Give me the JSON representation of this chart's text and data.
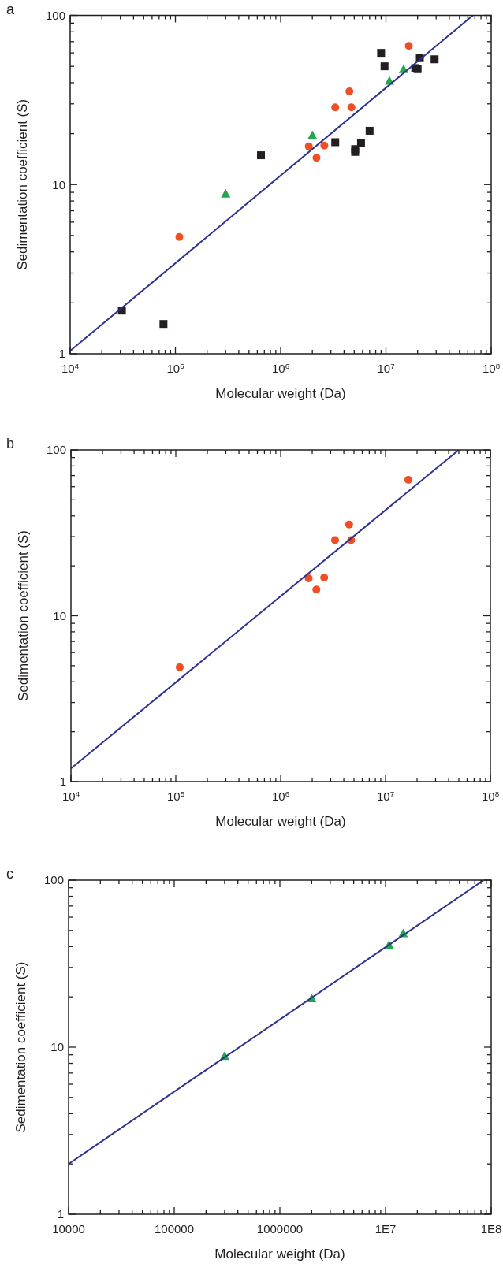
{
  "chart_data": [
    {
      "type": "scatter",
      "annotations": [
        "a"
      ],
      "xlabel": "Molecular weight (Da)",
      "ylabel": "Sedimentation coefficient (S)",
      "log": "xy",
      "grid": false,
      "xlim": [
        10000,
        100000000
      ],
      "ylim": [
        1,
        100
      ],
      "xticks": [
        {
          "value": 10000,
          "label": "10$^{4}$"
        },
        {
          "value": 20000,
          "label": null
        },
        {
          "value": 30000,
          "label": null
        },
        {
          "value": 40000,
          "label": null
        },
        {
          "value": 50000,
          "label": null
        },
        {
          "value": 60000,
          "label": null
        },
        {
          "value": 70000,
          "label": null
        },
        {
          "value": 80000,
          "label": null
        },
        {
          "value": 90000,
          "label": null
        },
        {
          "value": 100000,
          "label": "10$^{5}$"
        },
        {
          "value": 200000,
          "label": null
        },
        {
          "value": 300000,
          "label": null
        },
        {
          "value": 400000,
          "label": null
        },
        {
          "value": 500000,
          "label": null
        },
        {
          "value": 600000,
          "label": null
        },
        {
          "value": 700000,
          "label": null
        },
        {
          "value": 800000,
          "label": null
        },
        {
          "value": 900000,
          "label": null
        },
        {
          "value": 1000000,
          "label": "10$^{6}$"
        },
        {
          "value": 2000000,
          "label": null
        },
        {
          "value": 3000000,
          "label": null
        },
        {
          "value": 4000000,
          "label": null
        },
        {
          "value": 5000000,
          "label": null
        },
        {
          "value": 6000000,
          "label": null
        },
        {
          "value": 7000000,
          "label": null
        },
        {
          "value": 8000000,
          "label": null
        },
        {
          "value": 9000000,
          "label": null
        },
        {
          "value": 10000000,
          "label": "10$^{7}$"
        },
        {
          "value": 20000000,
          "label": null
        },
        {
          "value": 30000000,
          "label": null
        },
        {
          "value": 40000000,
          "label": null
        },
        {
          "value": 50000000,
          "label": null
        },
        {
          "value": 60000000,
          "label": null
        },
        {
          "value": 70000000,
          "label": null
        },
        {
          "value": 80000000,
          "label": null
        },
        {
          "value": 90000000,
          "label": null
        },
        {
          "value": 100000000,
          "label": "10$^{8}$"
        }
      ],
      "yticks": [
        1,
        {
          "value": 2,
          "label": null
        },
        {
          "value": 3,
          "label": null
        },
        {
          "value": 4,
          "label": null
        },
        {
          "value": 5,
          "label": null
        },
        {
          "value": 6,
          "label": null
        },
        {
          "value": 7,
          "label": null
        },
        {
          "value": 8,
          "label": null
        },
        {
          "value": 9,
          "label": null
        },
        10,
        {
          "value": 20,
          "label": null
        },
        {
          "value": 30,
          "label": null
        },
        {
          "value": 40,
          "label": null
        },
        {
          "value": 50,
          "label": null
        },
        {
          "value": 60,
          "label": null
        },
        {
          "value": 70,
          "label": null
        },
        {
          "value": 80,
          "label": null
        },
        {
          "value": 90,
          "label": null
        },
        100
      ],
      "series": [
        {
          "marker": "square",
          "color": "#231f20",
          "x": [
            31000,
            77000,
            650000,
            3300000,
            5100000,
            5100000,
            5800000,
            7000000,
            9000000,
            9700000,
            19000000,
            20000000,
            21000000,
            29000000
          ],
          "values": [
            1.8,
            1.5,
            14.9,
            17.8,
            16.2,
            15.6,
            17.6,
            20.8,
            60,
            50,
            48.8,
            48.1,
            55.9,
            55
          ]
        },
        {
          "marker": "circle",
          "color": "#f04e23",
          "x": [
            109000,
            1850000,
            2190000,
            2600000,
            3300000,
            4500000,
            4700000,
            16500000
          ],
          "values": [
            4.9,
            16.8,
            14.4,
            17,
            28.6,
            35.5,
            28.6,
            66
          ]
        },
        {
          "marker": "triangle",
          "color": "#22a84a",
          "x": [
            300000,
            2000000,
            10800000,
            14700000
          ],
          "values": [
            8.8,
            19.5,
            40.8,
            47.8
          ]
        },
        {
          "type": "line",
          "marker": "none",
          "color": "#2e3192",
          "x": [
            10000,
            67000000
          ],
          "values": [
            1.04,
            100
          ]
        }
      ]
    },
    {
      "type": "scatter",
      "annotations": [
        "b"
      ],
      "xlabel": "Molecular weight (Da)",
      "ylabel": "Sedimentation coefficient (S)",
      "log": "xy",
      "grid": false,
      "xlim": [
        10000,
        100000000
      ],
      "ylim": [
        1,
        100
      ],
      "xticks": [
        {
          "value": 10000,
          "label": "10$^{4}$"
        },
        {
          "value": 20000,
          "label": null
        },
        {
          "value": 30000,
          "label": null
        },
        {
          "value": 40000,
          "label": null
        },
        {
          "value": 50000,
          "label": null
        },
        {
          "value": 60000,
          "label": null
        },
        {
          "value": 70000,
          "label": null
        },
        {
          "value": 80000,
          "label": null
        },
        {
          "value": 90000,
          "label": null
        },
        {
          "value": 100000,
          "label": "10$^{5}$"
        },
        {
          "value": 200000,
          "label": null
        },
        {
          "value": 300000,
          "label": null
        },
        {
          "value": 400000,
          "label": null
        },
        {
          "value": 500000,
          "label": null
        },
        {
          "value": 600000,
          "label": null
        },
        {
          "value": 700000,
          "label": null
        },
        {
          "value": 800000,
          "label": null
        },
        {
          "value": 900000,
          "label": null
        },
        {
          "value": 1000000,
          "label": "10$^{6}$"
        },
        {
          "value": 2000000,
          "label": null
        },
        {
          "value": 3000000,
          "label": null
        },
        {
          "value": 4000000,
          "label": null
        },
        {
          "value": 5000000,
          "label": null
        },
        {
          "value": 6000000,
          "label": null
        },
        {
          "value": 7000000,
          "label": null
        },
        {
          "value": 8000000,
          "label": null
        },
        {
          "value": 9000000,
          "label": null
        },
        {
          "value": 10000000,
          "label": "10$^{7}$"
        },
        {
          "value": 20000000,
          "label": null
        },
        {
          "value": 30000000,
          "label": null
        },
        {
          "value": 40000000,
          "label": null
        },
        {
          "value": 50000000,
          "label": null
        },
        {
          "value": 60000000,
          "label": null
        },
        {
          "value": 70000000,
          "label": null
        },
        {
          "value": 80000000,
          "label": null
        },
        {
          "value": 90000000,
          "label": null
        },
        {
          "value": 100000000,
          "label": "10$^{8}$"
        }
      ],
      "yticks": [
        1,
        {
          "value": 2,
          "label": null
        },
        {
          "value": 3,
          "label": null
        },
        {
          "value": 4,
          "label": null
        },
        {
          "value": 5,
          "label": null
        },
        {
          "value": 6,
          "label": null
        },
        {
          "value": 7,
          "label": null
        },
        {
          "value": 8,
          "label": null
        },
        {
          "value": 9,
          "label": null
        },
        10,
        {
          "value": 20,
          "label": null
        },
        {
          "value": 30,
          "label": null
        },
        {
          "value": 40,
          "label": null
        },
        {
          "value": 50,
          "label": null
        },
        {
          "value": 60,
          "label": null
        },
        {
          "value": 70,
          "label": null
        },
        {
          "value": 80,
          "label": null
        },
        {
          "value": 90,
          "label": null
        },
        100
      ],
      "series": [
        {
          "marker": "circle",
          "color": "#f04e23",
          "x": [
            109000,
            1850000,
            2190000,
            2600000,
            3300000,
            4500000,
            4700000,
            16500000
          ],
          "values": [
            4.9,
            16.8,
            14.4,
            17,
            28.6,
            35.5,
            28.6,
            66
          ]
        },
        {
          "type": "line",
          "marker": "none",
          "color": "#2e3192",
          "x": [
            10000,
            50000000
          ],
          "values": [
            1.2,
            100
          ]
        }
      ]
    },
    {
      "type": "scatter",
      "annotations": [
        "c"
      ],
      "xlabel": "Molecular weight (Da)",
      "ylabel": "Sedimentation coefficient (S)",
      "log": "xy",
      "grid": false,
      "xlim": [
        10000,
        100000000
      ],
      "ylim": [
        1,
        100
      ],
      "xticks": [
        10000,
        {
          "value": 20000,
          "label": null
        },
        {
          "value": 30000,
          "label": null
        },
        {
          "value": 40000,
          "label": null
        },
        {
          "value": 50000,
          "label": null
        },
        {
          "value": 60000,
          "label": null
        },
        {
          "value": 70000,
          "label": null
        },
        {
          "value": 80000,
          "label": null
        },
        {
          "value": 90000,
          "label": null
        },
        100000,
        {
          "value": 200000,
          "label": null
        },
        {
          "value": 300000,
          "label": null
        },
        {
          "value": 400000,
          "label": null
        },
        {
          "value": 500000,
          "label": null
        },
        {
          "value": 600000,
          "label": null
        },
        {
          "value": 700000,
          "label": null
        },
        {
          "value": 800000,
          "label": null
        },
        {
          "value": 900000,
          "label": null
        },
        1000000,
        {
          "value": 2000000,
          "label": null
        },
        {
          "value": 3000000,
          "label": null
        },
        {
          "value": 4000000,
          "label": null
        },
        {
          "value": 5000000,
          "label": null
        },
        {
          "value": 6000000,
          "label": null
        },
        {
          "value": 7000000,
          "label": null
        },
        {
          "value": 8000000,
          "label": null
        },
        {
          "value": 9000000,
          "label": null
        },
        {
          "value": 10000000,
          "label": "1E7"
        },
        {
          "value": 20000000,
          "label": null
        },
        {
          "value": 30000000,
          "label": null
        },
        {
          "value": 40000000,
          "label": null
        },
        {
          "value": 50000000,
          "label": null
        },
        {
          "value": 60000000,
          "label": null
        },
        {
          "value": 70000000,
          "label": null
        },
        {
          "value": 80000000,
          "label": null
        },
        {
          "value": 90000000,
          "label": null
        },
        {
          "value": 100000000,
          "label": "1E8"
        }
      ],
      "yticks": [
        1,
        {
          "value": 2,
          "label": null
        },
        {
          "value": 3,
          "label": null
        },
        {
          "value": 4,
          "label": null
        },
        {
          "value": 5,
          "label": null
        },
        {
          "value": 6,
          "label": null
        },
        {
          "value": 7,
          "label": null
        },
        {
          "value": 8,
          "label": null
        },
        {
          "value": 9,
          "label": null
        },
        10,
        {
          "value": 20,
          "label": null
        },
        {
          "value": 30,
          "label": null
        },
        {
          "value": 40,
          "label": null
        },
        {
          "value": 50,
          "label": null
        },
        {
          "value": 60,
          "label": null
        },
        {
          "value": 70,
          "label": null
        },
        {
          "value": 80,
          "label": null
        },
        {
          "value": 90,
          "label": null
        },
        100
      ],
      "series": [
        {
          "marker": "triangle",
          "color": "#22a84a",
          "x": [
            300000,
            2000000,
            10800000,
            14700000
          ],
          "values": [
            8.8,
            19.5,
            40.8,
            47.8
          ]
        },
        {
          "type": "line",
          "marker": "none",
          "color": "#2e3192",
          "x": [
            10000,
            85000000
          ],
          "values": [
            2,
            100
          ]
        }
      ]
    }
  ]
}
